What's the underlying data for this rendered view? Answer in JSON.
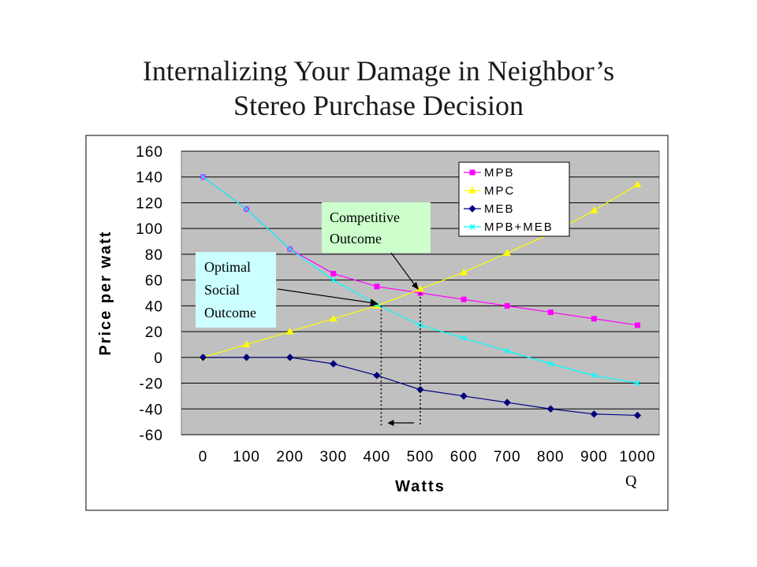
{
  "slide": {
    "title_line1": "Internalizing Your Damage in Neighbor’s",
    "title_line2": "Stereo Purchase Decision"
  },
  "chart_data": {
    "type": "line",
    "title": "",
    "xlabel": "Watts",
    "ylabel": "Price per watt",
    "x": [
      0,
      100,
      200,
      300,
      400,
      500,
      600,
      700,
      800,
      900,
      1000
    ],
    "xlim": [
      0,
      1000
    ],
    "ylim": [
      -60,
      160
    ],
    "yticks": [
      160,
      140,
      120,
      100,
      80,
      60,
      40,
      20,
      0,
      -20,
      -40,
      -60
    ],
    "grid": true,
    "legend_position": "top-right",
    "series": [
      {
        "name": "MPB",
        "color": "#ff00ff",
        "marker": "square",
        "values": [
          140,
          115,
          84,
          65,
          55,
          50,
          45,
          40,
          35,
          30,
          25
        ]
      },
      {
        "name": "MPC",
        "color": "#ffff00",
        "marker": "triangle",
        "values": [
          0,
          10,
          20,
          30,
          40,
          53,
          66,
          81,
          96,
          114,
          134
        ]
      },
      {
        "name": "MEB",
        "color": "#000080",
        "marker": "diamond",
        "values": [
          0,
          0,
          0,
          -5,
          -14,
          -25,
          -30,
          -35,
          -40,
          -44,
          -45
        ]
      },
      {
        "name": "MPB+MEB",
        "color": "#00ffff",
        "marker": "x",
        "values": [
          140,
          115,
          84,
          60,
          41,
          25,
          15,
          5,
          -5,
          -14,
          -20
        ]
      }
    ],
    "annotations": {
      "competitive": {
        "line1": "Competitive",
        "line2": "Outcome",
        "x": 500,
        "y": 50,
        "bg": "#ccffcc"
      },
      "optimal": {
        "line1": "Optimal",
        "line2": "Social",
        "line3": "Outcome",
        "x": 410,
        "y": 40,
        "bg": "#ccffff"
      },
      "q_label": "Q"
    }
  }
}
